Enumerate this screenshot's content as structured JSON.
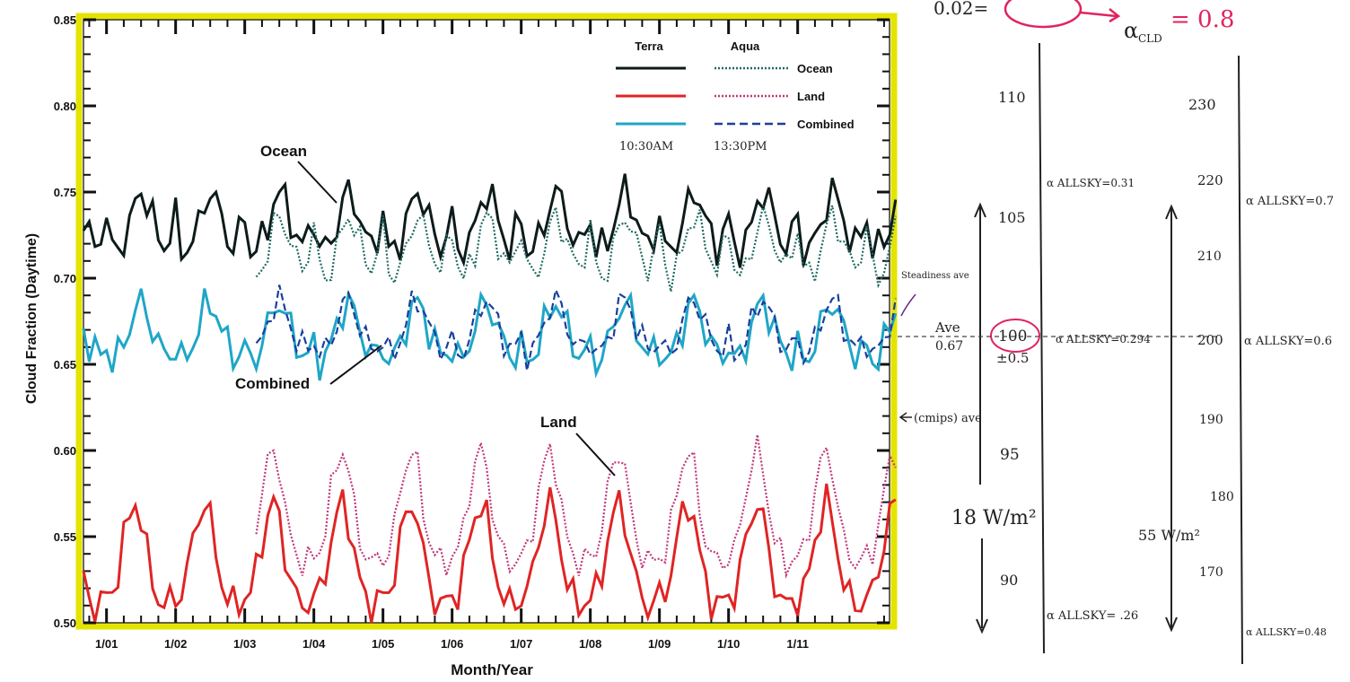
{
  "chart_data": {
    "type": "line",
    "xlabel": "Month/Year",
    "ylabel": "Cloud Fraction (Daytime)",
    "ylim": [
      0.5,
      0.85
    ],
    "yticks": [
      "0.50",
      "0.55",
      "0.60",
      "0.65",
      "0.70",
      "0.75",
      "0.80",
      "0.85"
    ],
    "xticks": [
      "1/01",
      "1/02",
      "1/03",
      "1/04",
      "1/05",
      "1/06",
      "1/07",
      "1/08",
      "1/09",
      "1/10",
      "1/11"
    ],
    "legend": {
      "placement": "top-right",
      "col_terra": "Terra",
      "col_aqua": "Aqua",
      "rows": [
        "Ocean",
        "Land",
        "Combined"
      ],
      "time_terra": "10:30AM",
      "time_aqua": "13:30PM"
    },
    "annotations": {
      "ocean": "Ocean",
      "combined": "Combined",
      "land": "Land"
    },
    "series": [
      {
        "name": "Ocean",
        "satellite": "Terra",
        "color": "#0d1b1b",
        "profile": [
          0.735,
          0.716,
          0.718,
          0.722,
          0.73,
          0.744,
          0.75,
          0.745,
          0.734,
          0.724,
          0.718,
          0.726
        ],
        "amp": 0.012,
        "start": 0.0,
        "end": 11.8
      },
      {
        "name": "Ocean",
        "satellite": "Aqua",
        "color": "#1e6b62",
        "profile": [
          0.728,
          0.708,
          0.7,
          0.706,
          0.716,
          0.73,
          0.736,
          0.73,
          0.72,
          0.712,
          0.705,
          0.716
        ],
        "amp": 0.01,
        "start": 2.5,
        "end": 11.8
      },
      {
        "name": "Combined",
        "satellite": "Terra",
        "color": "#1fa6c7",
        "profile": [
          0.66,
          0.652,
          0.655,
          0.662,
          0.672,
          0.682,
          0.686,
          0.68,
          0.67,
          0.662,
          0.656,
          0.656
        ],
        "amp": 0.012,
        "start": 0.0,
        "end": 11.8
      },
      {
        "name": "Combined",
        "satellite": "Aqua",
        "color": "#1a3f9c",
        "profile": [
          0.664,
          0.656,
          0.658,
          0.664,
          0.674,
          0.684,
          0.688,
          0.682,
          0.672,
          0.664,
          0.66,
          0.66
        ],
        "amp": 0.01,
        "start": 2.5,
        "end": 11.8
      },
      {
        "name": "Land",
        "satellite": "Terra",
        "color": "#e02424",
        "profile": [
          0.515,
          0.518,
          0.53,
          0.548,
          0.562,
          0.57,
          0.56,
          0.54,
          0.524,
          0.514,
          0.51,
          0.512
        ],
        "amp": 0.012,
        "start": 0.0,
        "end": 11.8
      },
      {
        "name": "Land",
        "satellite": "Aqua",
        "color": "#c2377a",
        "profile": [
          0.538,
          0.542,
          0.556,
          0.576,
          0.592,
          0.6,
          0.59,
          0.566,
          0.548,
          0.54,
          0.535,
          0.536
        ],
        "amp": 0.01,
        "start": 2.5,
        "end": 11.8
      }
    ]
  },
  "handwritten": {
    "top_left": "0.02=",
    "top_alpha": "α",
    "top_alpha_sub": "CLD",
    "top_value": "= 0.8",
    "steadiness_note": "Steadiness ave",
    "ave_label": "Ave",
    "ave_value": "0.67",
    "cmips_note": "(cmips) ave",
    "watts_left": "18 W/m²",
    "watts_right": "55 W/m²",
    "left_scale": [
      "110",
      "105",
      "100",
      "95",
      "90"
    ],
    "left_uncertainty": "±0.5",
    "left_alphas": [
      "α ALLSKY=0.31",
      "α ALLSKY=0.294",
      "α ALLSKY= .26"
    ],
    "right_scale": [
      "230",
      "220",
      "210",
      "200",
      "190",
      "180",
      "170"
    ],
    "right_alphas": [
      "α ALLSKY=0.7",
      "α ALLSKY=0.6",
      "α ALLSKY=0.48"
    ]
  }
}
